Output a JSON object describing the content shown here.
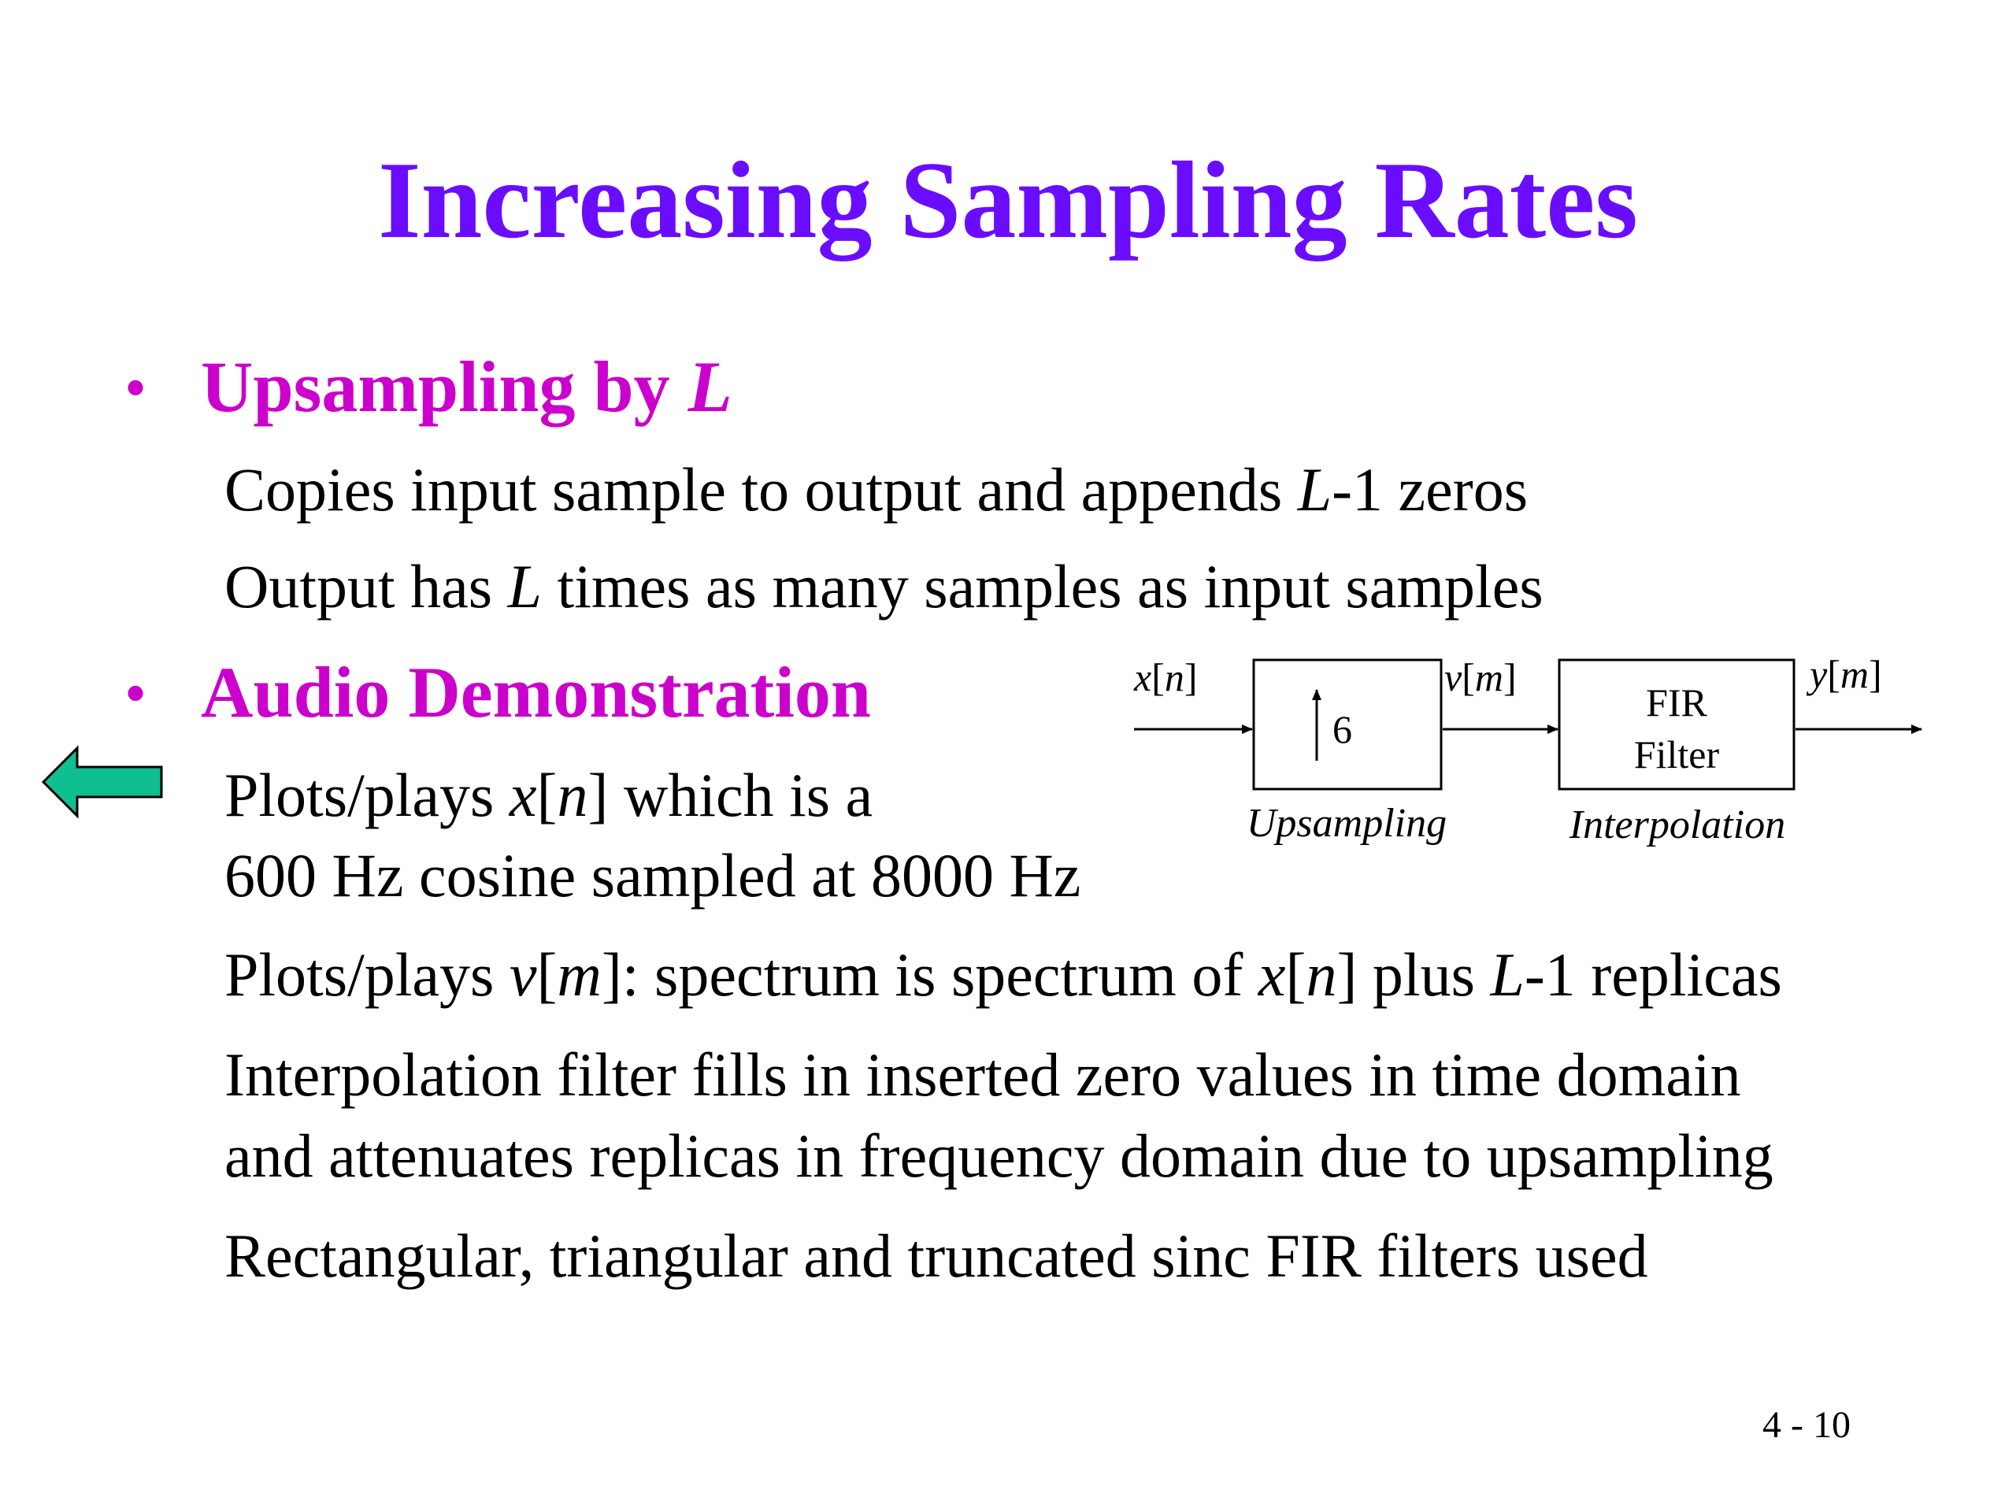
{
  "colors": {
    "title": "#6a0dff",
    "bullet": "#cc00cc",
    "text": "#000000",
    "arrow_fill": "#0fbf8f"
  },
  "slide": {
    "title": "Increasing Sampling Rates",
    "page_number": "4 - 10"
  },
  "bullets": [
    {
      "dot": "•",
      "label": "Upsampling by ",
      "label_var": "L",
      "lines": [
        {
          "a": "Copies input sample to output and appends ",
          "v1": "L",
          "b": "-1 zeros"
        },
        {
          "a": "Output has ",
          "v1": "L",
          "b": " times as many samples as input samples"
        }
      ]
    },
    {
      "dot": "•",
      "label": "Audio Demonstration",
      "lines": [
        {
          "a": "Plots/plays ",
          "v1": "x",
          "b": "[",
          "v2": "n",
          "c": "] which is a"
        },
        {
          "a": "600 Hz cosine sampled at 8000 Hz"
        },
        {
          "a": "Plots/plays ",
          "v1": "v",
          "b": "[",
          "v2": "m",
          "c": "]: spectrum is spectrum of ",
          "v3": "x",
          "d": "[",
          "v4": "n",
          "e": "] plus ",
          "v5": "L",
          "f": "-1 replicas"
        },
        {
          "a": "Interpolation filter fills in inserted zero values in time domain"
        },
        {
          "a": "and attenuates replicas in frequency domain due to upsampling"
        },
        {
          "a": "Rectangular, triangular and truncated sinc FIR filters used"
        }
      ]
    }
  ],
  "back_arrow": {
    "icon": "left-arrow-icon"
  },
  "diagram": {
    "input": {
      "var": "x",
      "open": "[",
      "idx": "n",
      "close": "]"
    },
    "mid": {
      "var": "v",
      "open": "[",
      "idx": "m",
      "close": "]"
    },
    "output": {
      "var": "y",
      "open": "[",
      "idx": "m",
      "close": "]"
    },
    "upsampler": {
      "factor": "6",
      "caption": "Upsampling",
      "icon": "up-arrow-icon"
    },
    "filter": {
      "line1": "FIR",
      "line2": "Filter",
      "caption": "Interpolation"
    }
  }
}
